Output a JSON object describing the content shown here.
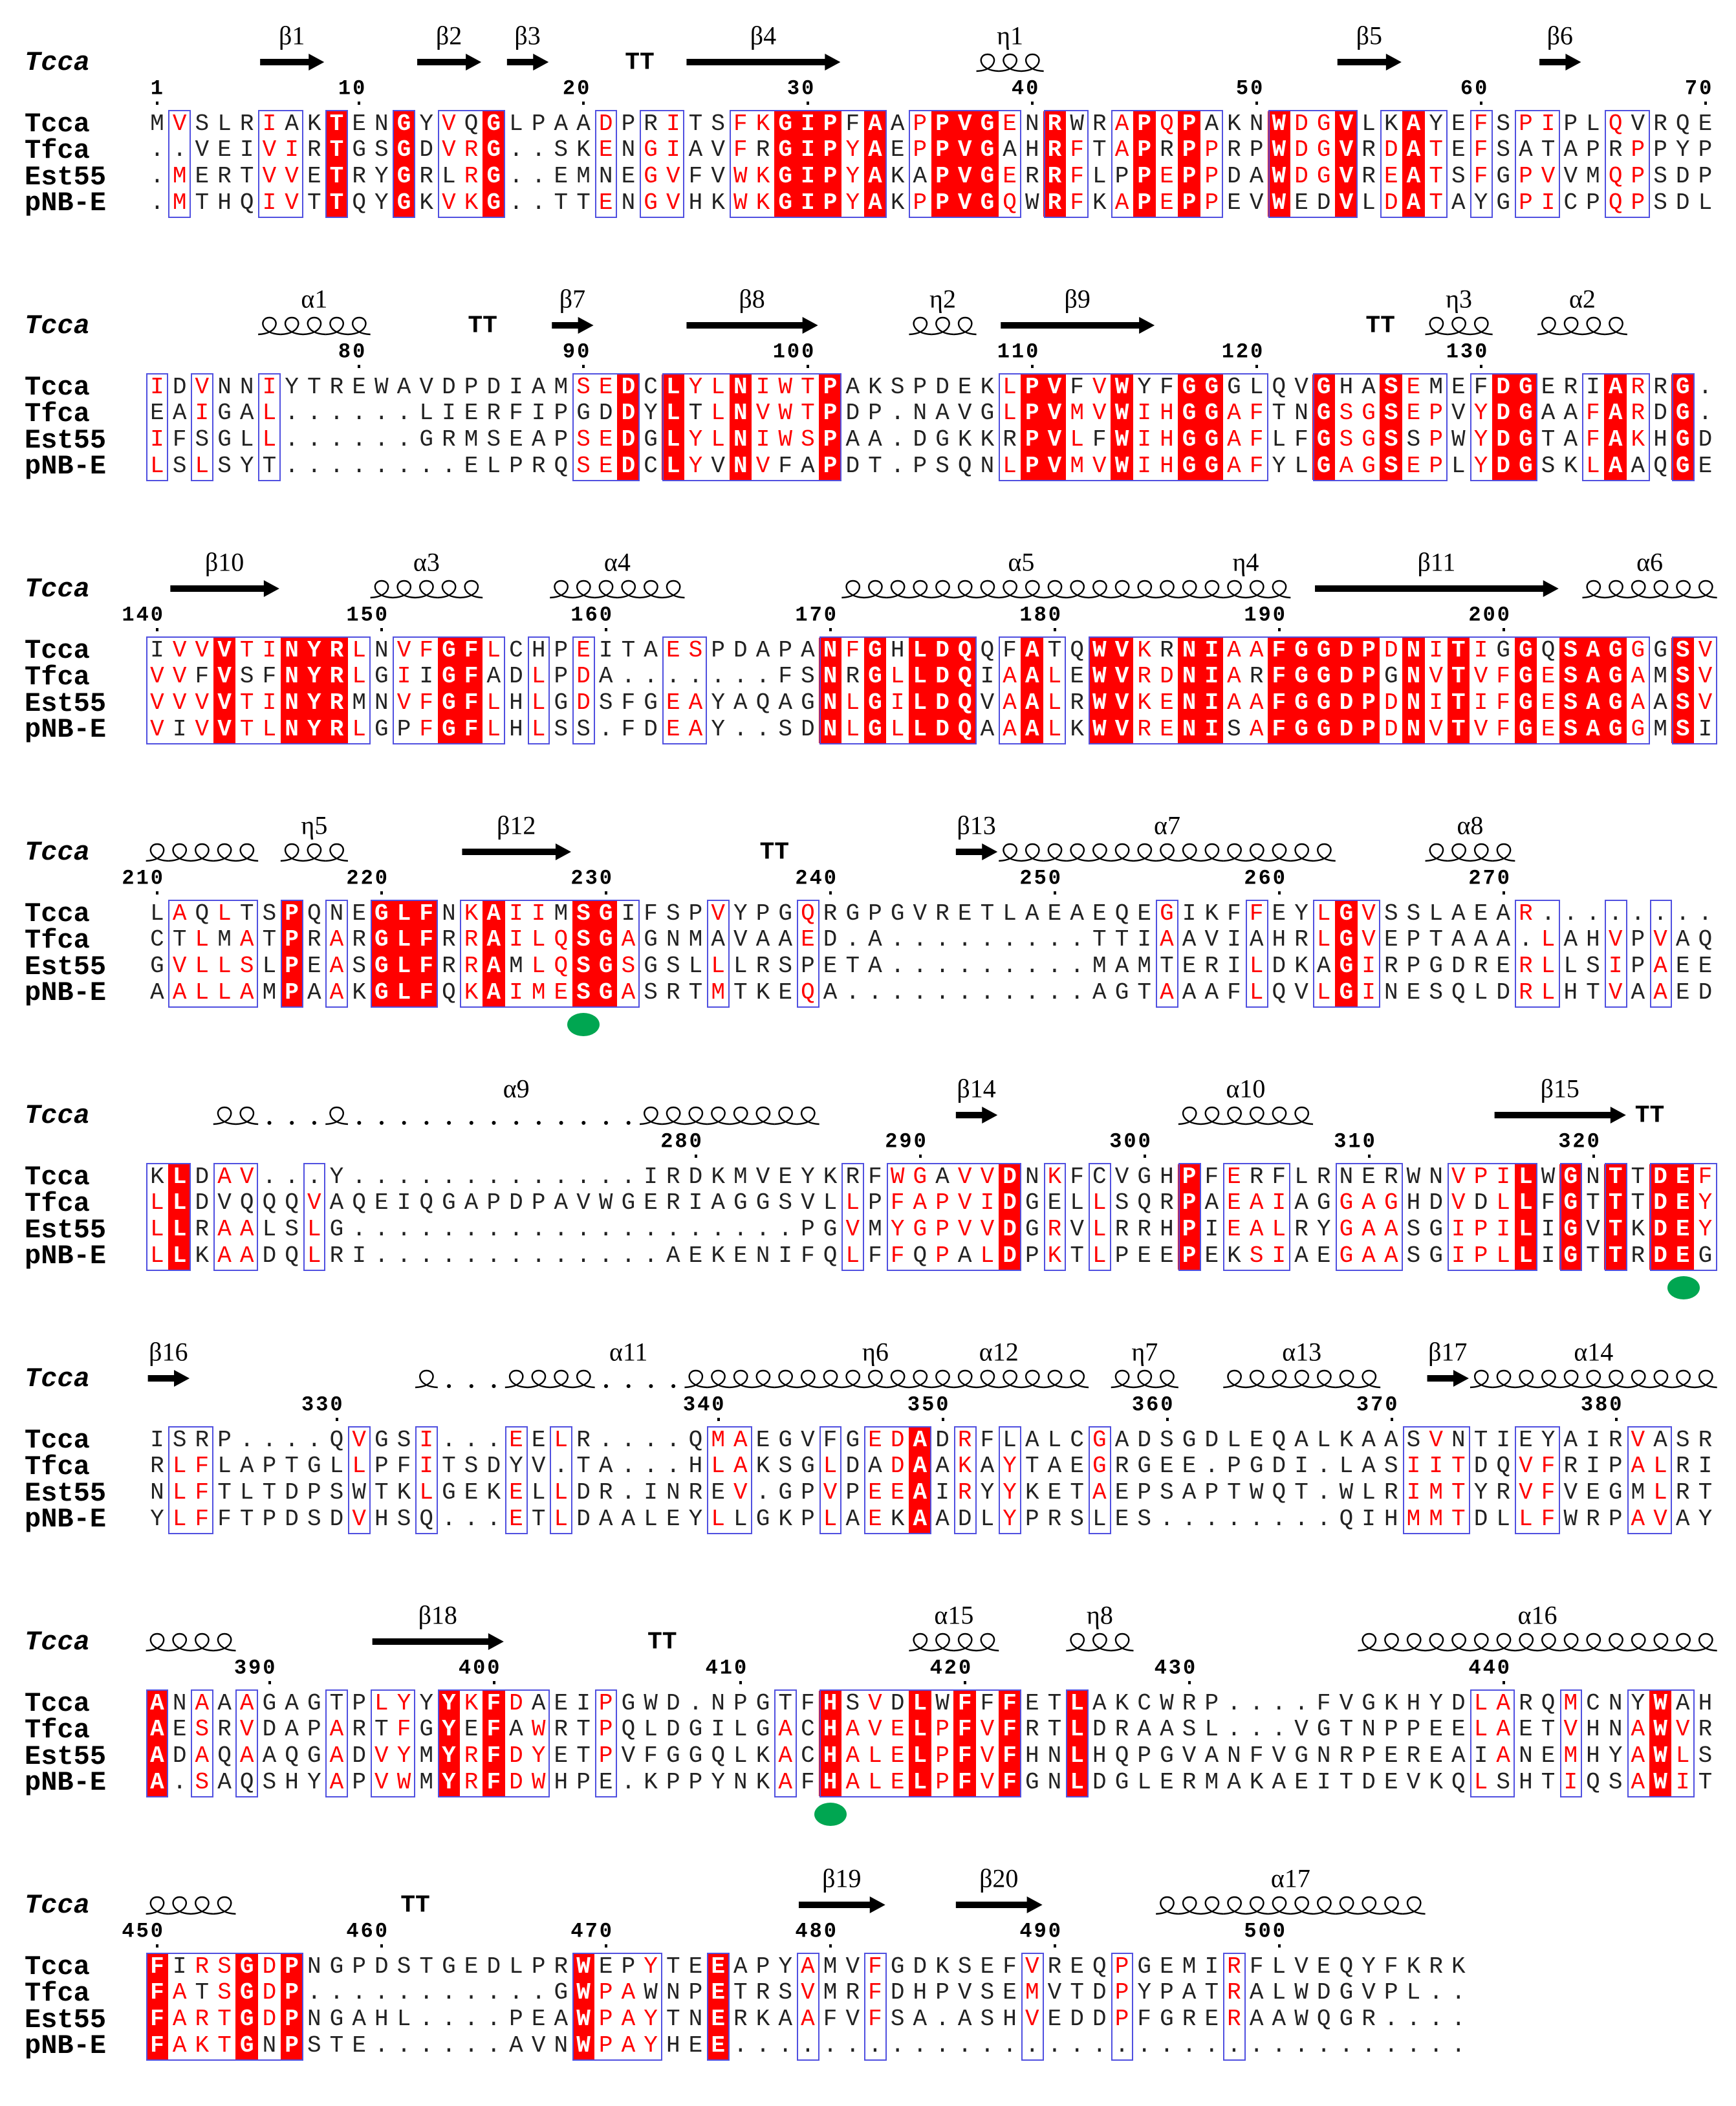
{
  "reference_label": "Tcca",
  "sequence_names": [
    "Tcca",
    "Tfca",
    "Est55",
    "pNB-E"
  ],
  "colors": {
    "identical_fill": "#ff0000",
    "similar_text": "#ff0000",
    "frame": "#5050e0",
    "catalytic_marker": "#00a651"
  },
  "catalytic_residues": [
    229,
    324,
    414
  ],
  "blocks": [
    {
      "ticks": [
        1,
        10,
        20,
        30,
        40,
        50,
        60,
        70
      ],
      "rows": [
        "MVSLRIAKTENGYVQGLPAADPRITSFKGIPFAAPPVGENRWRAPQPAKNWDGVLKAYEFSPIPLQVRQE",
        "..VEIVIRTGSGDVRG..SKENGIAVFRGIPYAEPPVGAHRFTAPRPPRPWDGVRDATEFSATAPRPPYP",
        ".MERTVVETRYGRLRG..EMNEGVFVWKGIPYAKAPVGERRFLPPEPPDAWDGVREATSFGPVVMQPSDP",
        ".MTHQIVTTQYGKVKG..TTENGVHKWKGIPYAKPPVGQWRFKAPEPPEVWEDVLDATAYGPICPQPSDL"
      ],
      "ss": [
        {
          "type": "strand",
          "label": "β1",
          "from": 6,
          "to": 8
        },
        {
          "type": "strand",
          "label": "β2",
          "from": 13,
          "to": 15
        },
        {
          "type": "strand",
          "label": "β3",
          "from": 17,
          "to": 18
        },
        {
          "type": "turn",
          "label": "TT",
          "from": 22,
          "to": 23
        },
        {
          "type": "strand",
          "label": "β4",
          "from": 25,
          "to": 31
        },
        {
          "type": "helix",
          "label": "η1",
          "from": 38,
          "to": 40
        },
        {
          "type": "strand",
          "label": "β5",
          "from": 54,
          "to": 56
        },
        {
          "type": "strand",
          "label": "β6",
          "from": 63,
          "to": 64
        }
      ]
    },
    {
      "ticks": [
        80,
        90,
        100,
        110,
        120,
        130
      ],
      "rows": [
        "IDVNNIYTREWAVDPDIAMSEDCLYLNIWTPAKSPDEKLPVFVWYFGGGLQVGHASEMEFDGERIARRG.",
        "EAIGAL......LIERFIPGDDYLTLNVWTPDP.NAVGLPVMVWIHGGAFTNGSGSEPVYDGAAFARDG.",
        "IFSGLL......GRMSEAPSEDGLYLNIWSPAA.DGKKRPVLFWIHGGAFLFGSGSSPWYDGTAFAKHGD",
        "LSLSYT........ELPRQSEDCLYVNVFAPDT.PSQNLPVMVWIHGGAFYLGAGSEPLYDGSKLAAQGE"
      ],
      "ss": [
        {
          "type": "helix",
          "label": "α1",
          "from": 76,
          "to": 80
        },
        {
          "type": "turn",
          "label": "TT",
          "from": 85,
          "to": 86
        },
        {
          "type": "strand",
          "label": "β7",
          "from": 89,
          "to": 90
        },
        {
          "type": "strand",
          "label": "β8",
          "from": 95,
          "to": 100
        },
        {
          "type": "helix",
          "label": "η2",
          "from": 105,
          "to": 107
        },
        {
          "type": "strand",
          "label": "β9",
          "from": 109,
          "to": 115
        },
        {
          "type": "turn",
          "label": "TT",
          "from": 125,
          "to": 126
        },
        {
          "type": "helix",
          "label": "η3",
          "from": 128,
          "to": 130
        },
        {
          "type": "helix",
          "label": "α2",
          "from": 133,
          "to": 136
        }
      ]
    },
    {
      "ticks": [
        140,
        150,
        160,
        170,
        180,
        190,
        200
      ],
      "rows": [
        "IVVVTINYRLNVFGFLCHPEITAESPDAPANFGHLDQQFATQWVKRNIAAFGGDPDNITIGGQSAGGGSV",
        "VVFVSFNYRLGIIGFADLPDA.......FSNRGLLDQIAALEWVRDNIARFGGDPGNVTVFGESAGAMSV",
        "VVVVTINYRMNVFGFLHLGDSFGEAYAQAGNLGILDQVAALRWVKENIAAFGGDPDNITIFGESAGAASV",
        "VIVVTLNYRLGPFGFLHLSS.FDEAY..SDNLGLLDQAAALKWVRENISAFGGDPDNVTVFGESAGGMSI"
      ],
      "ss": [
        {
          "type": "strand",
          "label": "β10",
          "from": 141,
          "to": 145
        },
        {
          "type": "helix",
          "label": "α3",
          "from": 150,
          "to": 154
        },
        {
          "type": "helix",
          "label": "α4",
          "from": 158,
          "to": 163
        },
        {
          "type": "helix",
          "label": "α5",
          "from": 171,
          "to": 186
        },
        {
          "type": "helix",
          "label": "η4",
          "from": 187,
          "to": 190
        },
        {
          "type": "strand",
          "label": "β11",
          "from": 192,
          "to": 202
        },
        {
          "type": "helix",
          "label": "α6",
          "from": 204,
          "to": 209
        }
      ]
    },
    {
      "ticks": [
        210,
        220,
        230,
        240,
        250,
        260,
        270
      ],
      "rows": [
        "LAQLTSPQNEGLFNKAIIMSGIFSPVYPGQRGPGVRETLAEAEQEGIKFFEYLGVSSLAEAR........",
        "CTLMATPRARGLFRRAILQSGAGNMAVAAED.A.........TTIAAVIAHRLGVEPTAAA.LAHVPVAQ",
        "GVLLSLPEASGLFRRAMLQSGSGSLLLRSPETA.........MAMTERILDKAGIRPGDRERLLSIPAEE",
        "AALLAMPAAKGLFQKAIMESGASRTMTKEQA...........AGTAAAFLQVLGINESQLDRLHTVAAED"
      ],
      "ss": [
        {
          "type": "helix",
          "label": "",
          "from": 210,
          "to": 214
        },
        {
          "type": "helix",
          "label": "η5",
          "from": 216,
          "to": 218
        },
        {
          "type": "strand",
          "label": "β12",
          "from": 224,
          "to": 228
        },
        {
          "type": "turn",
          "label": "TT",
          "from": 237,
          "to": 238
        },
        {
          "type": "strand",
          "label": "β13",
          "from": 246,
          "to": 247
        },
        {
          "type": "helix",
          "label": "α7",
          "from": 248,
          "to": 262
        },
        {
          "type": "helix",
          "label": "α8",
          "from": 267,
          "to": 270
        }
      ]
    },
    {
      "ticks": [
        280,
        290,
        300,
        310,
        320
      ],
      "rows": [
        "KLDAV...Y.............IRDKMVEYKRFWGAVVDNKFCVGHPFERFLRNERWNVPILWGNTTDEF",
        "LLDVQQQVAQEIQGAPDPAVWGERIAGGSVLLPFAPVIDGELLSQRPAEAIAGGAGHDVDLLFGTTTDEY",
        "LLRAALSLG....................PGVMYGPVVDGRVLRRHPIEALRYGAASGIPILIGVTKDEY",
        "LLKAADQLRI.............AEKENIFQLFFQPALDPKTLPEEPEKSIAEGAASGIPLLIGTTRDEG"
      ],
      "ss": [
        {
          "type": "helix",
          "label": "α9",
          "from": 275,
          "to": 285
        },
        {
          "type": "strand",
          "label": "β14",
          "from": 292,
          "to": 293
        },
        {
          "type": "helix",
          "label": "α10",
          "from": 302,
          "to": 307
        },
        {
          "type": "strand",
          "label": "β15",
          "from": 316,
          "to": 321
        },
        {
          "type": "turn",
          "label": "TT",
          "from": 322,
          "to": 323
        }
      ]
    },
    {
      "ticks": [
        330,
        340,
        350,
        360,
        370,
        380
      ],
      "rows": [
        "ISRP....QVGSI...EELR....QMAEGVFGEDADRFLALCGADSGDLEQALKAASVNTIEYAIRVASR",
        "RLFLAPTGLLPFITSDYV.TA...HLAKSGLDADAAKAYTAEGRGEE.PGDI.LASIITDQVFRIPALRI",
        "NLFTLTDPSWTKLGEKELLDR.INREV.GPVPEEAIRYYKETAEPSAPTWQT.WLRIMTYRVFVEGMLRT",
        "YLFFTPDSDVHSQ...ETLDAALEYLLGKPLAEKAADLYPRSLES........QIHMMTDLLFWRPAVAY"
      ],
      "ss": [
        {
          "type": "strand",
          "label": "β16",
          "from": 326,
          "to": 327
        },
        {
          "type": "helix",
          "label": "α11",
          "from": 334,
          "to": 345
        },
        {
          "type": "helix",
          "label": "η6",
          "from": 346,
          "to": 348
        },
        {
          "type": "helix",
          "label": "α12",
          "from": 349,
          "to": 356
        },
        {
          "type": "helix",
          "label": "η7",
          "from": 358,
          "to": 360
        },
        {
          "type": "helix",
          "label": "α13",
          "from": 363,
          "to": 369
        },
        {
          "type": "strand",
          "label": "β17",
          "from": 372,
          "to": 373
        },
        {
          "type": "helix",
          "label": "α14",
          "from": 374,
          "to": 384
        }
      ]
    },
    {
      "ticks": [
        390,
        400,
        410,
        420,
        430,
        440
      ],
      "rows": [
        "ANAAAGAGTPLYYYKFDAEIPGWD.NPGTFHSVDLWFFFETLAKCWRP....FVGKHYDLARQMCNYWAH",
        "AESRVDAPARTFGYEFAWRTPQLDGILGACHAVELPFVFRTLDRAASL...VGTNPPEELAETVHNAWVR",
        "ADAQAAQGADVYMYRFDYETPVFGGQLKACHALELPFVFHNLHQPGVANFVGNRPEREAIANEMHYAWLS",
        "A.SAQSHYAPVWMYRFDWHPE.KPPYNKAFHALELPFVFGNLDGLERMAKAEITDEVKQLSHTIQSAWIT"
      ],
      "ss": [
        {
          "type": "helix",
          "label": "",
          "from": 385,
          "to": 388
        },
        {
          "type": "strand",
          "label": "β18",
          "from": 395,
          "to": 400
        },
        {
          "type": "turn",
          "label": "TT",
          "from": 407,
          "to": 408
        },
        {
          "type": "helix",
          "label": "α15",
          "from": 418,
          "to": 421
        },
        {
          "type": "helix",
          "label": "η8",
          "from": 425,
          "to": 427
        },
        {
          "type": "helix",
          "label": "α16",
          "from": 434,
          "to": 449
        }
      ]
    },
    {
      "ticks": [
        450,
        460,
        470,
        480,
        490,
        500
      ],
      "rows": [
        "FIRSGDPNGPDSTGEDLPRWEPYTEEAPYAMVFGDKSEFVREQPGEMIRFLVEQYFKRK",
        "FATSGDP...........GWPAWNPETRSVMRFDHPVSEMVTDPYPATRALWDGVPL..",
        "FARTGDPNGAHL....PEAWPAYTNERKAAFVFSA.ASHVEDDPFGRERAAWQGR....",
        "FAKTGNPSTE......AVNWPAYHEE................................."
      ],
      "ss": [
        {
          "type": "helix",
          "label": "",
          "from": 450,
          "to": 453
        },
        {
          "type": "turn",
          "label": "TT",
          "from": 461,
          "to": 462
        },
        {
          "type": "strand",
          "label": "β19",
          "from": 479,
          "to": 482
        },
        {
          "type": "strand",
          "label": "β20",
          "from": 486,
          "to": 489
        },
        {
          "type": "helix",
          "label": "α17",
          "from": 495,
          "to": 506
        }
      ]
    }
  ]
}
